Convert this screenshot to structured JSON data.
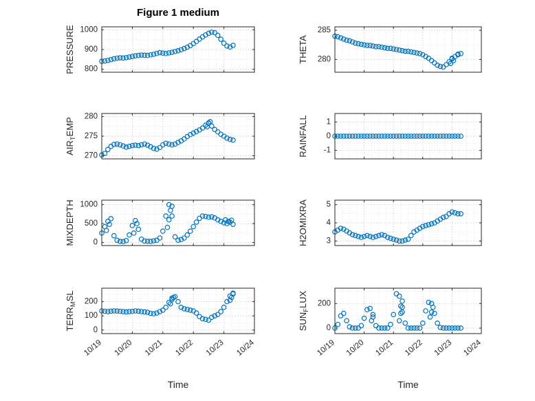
{
  "title": "Figure 1 medium",
  "colors": {
    "marker": "#0072BD",
    "axis": "#262626",
    "grid_major": "#bcbcbc",
    "grid_minor": "#e2e2e2",
    "text": "#262626"
  },
  "chart_data": {
    "type": "scatter",
    "xlabel": "Time",
    "marker": {
      "shape": "open-circle",
      "color": "#0072BD",
      "radius": 3.2
    },
    "xlim": [
      0,
      5
    ],
    "x_ticks": {
      "positions": [
        0,
        1,
        2,
        3,
        4,
        5
      ],
      "labels": [
        "10/19",
        "10/20",
        "10/21",
        "10/22",
        "10/23",
        "10/24"
      ]
    },
    "grid": {
      "major": true,
      "minor": true,
      "style": "dotted"
    },
    "x_base": [
      0,
      0.1,
      0.2,
      0.3,
      0.4,
      0.5,
      0.6,
      0.7,
      0.8,
      0.9,
      1,
      1.1,
      1.2,
      1.3,
      1.4,
      1.5,
      1.6,
      1.7,
      1.8,
      1.9,
      2,
      2.1,
      2.2,
      2.3,
      2.4,
      2.5,
      2.6,
      2.7,
      2.8,
      2.9,
      3,
      3.1,
      3.2,
      3.3,
      3.4,
      3.5,
      3.6,
      3.7,
      3.8,
      3.9,
      4,
      4.1,
      4.2,
      4.3
    ],
    "subplots": [
      {
        "name": "PRESSURE",
        "ylabel_parts": [
          {
            "t": "PRESSURE"
          }
        ],
        "ylim": [
          785,
          1015
        ],
        "yticks": [
          800,
          900,
          1000
        ],
        "y": [
          840,
          842,
          845,
          849,
          853,
          856,
          858,
          857,
          859,
          862,
          865,
          868,
          870,
          872,
          871,
          870,
          873,
          876,
          880,
          884,
          882,
          880,
          883,
          886,
          890,
          894,
          899,
          905,
          912,
          920,
          930,
          941,
          953,
          964,
          974,
          982,
          988,
          985,
          972,
          952,
          932,
          918,
          913,
          921
        ]
      },
      {
        "name": "THETA",
        "ylabel_parts": [
          {
            "t": "THETA"
          }
        ],
        "ylim": [
          277.8,
          285.6
        ],
        "yticks": [
          280,
          285
        ],
        "y": [
          284.0,
          283.9,
          283.7,
          283.5,
          283.3,
          283.2,
          283.0,
          282.8,
          282.7,
          282.6,
          282.5,
          282.4,
          282.4,
          282.3,
          282.2,
          282.2,
          282.1,
          282.0,
          281.9,
          281.9,
          281.8,
          281.7,
          281.6,
          281.5,
          281.4,
          281.4,
          281.3,
          281.2,
          281.1,
          281.0,
          280.8,
          280.5,
          280.2,
          279.8,
          279.4,
          279.0,
          278.8,
          278.7,
          279.1,
          279.6,
          280.1,
          280.5,
          280.8,
          281.0
        ],
        "x_extra": [
          3.95,
          4.0,
          4.05,
          4.2
        ],
        "y_extra": [
          279.3,
          280.2,
          279.8,
          280.9
        ]
      },
      {
        "name": "AIR_TEMP",
        "ylabel_parts": [
          {
            "t": "AIR"
          },
          {
            "t": "T",
            "sub": true
          },
          {
            "t": "EMP"
          }
        ],
        "ylim": [
          269.2,
          280.8
        ],
        "yticks": [
          270,
          275,
          280
        ],
        "y": [
          270.2,
          270.6,
          271.6,
          272.4,
          272.9,
          273.0,
          272.8,
          272.5,
          272.2,
          272.4,
          272.6,
          272.7,
          272.6,
          272.8,
          273.0,
          272.7,
          272.3,
          271.9,
          271.7,
          272.1,
          272.8,
          273.2,
          273.0,
          272.8,
          273.0,
          273.4,
          273.8,
          274.3,
          274.9,
          275.4,
          275.8,
          276.2,
          276.6,
          277.1,
          277.8,
          278.4,
          277.6,
          276.7,
          276.1,
          275.5,
          275.0,
          274.5,
          274.2,
          274.0
        ],
        "x_extra": [
          3.45,
          3.5,
          3.55
        ],
        "y_extra": [
          277.4,
          278.3,
          278.7
        ]
      },
      {
        "name": "RAINFALL",
        "ylabel_parts": [
          {
            "t": "RAINFALL"
          }
        ],
        "ylim": [
          -1.6,
          1.6
        ],
        "yticks": [
          -1,
          0,
          1
        ],
        "y": [
          0,
          0,
          0,
          0,
          0,
          0,
          0,
          0,
          0,
          0,
          0,
          0,
          0,
          0,
          0,
          0,
          0,
          0,
          0,
          0,
          0,
          0,
          0,
          0,
          0,
          0,
          0,
          0,
          0,
          0,
          0,
          0,
          0,
          0,
          0,
          0,
          0,
          0,
          0,
          0,
          0,
          0,
          0,
          0
        ]
      },
      {
        "name": "MIXDEPTH",
        "ylabel_parts": [
          {
            "t": "MIXDEPTH"
          }
        ],
        "ylim": [
          -80,
          1120
        ],
        "yticks": [
          0,
          500,
          1000
        ],
        "y": [
          250,
          420,
          560,
          630,
          180,
          60,
          30,
          25,
          50,
          200,
          450,
          580,
          350,
          90,
          40,
          35,
          30,
          45,
          60,
          120,
          300,
          700,
          1000,
          960,
          150,
          60,
          80,
          120,
          200,
          300,
          420,
          540,
          640,
          700,
          690,
          670,
          680,
          650,
          600,
          560,
          520,
          500,
          540,
          480
        ],
        "x_extra": [
          0.15,
          0.25,
          1.05,
          1.15,
          2.15,
          2.2,
          2.25,
          2.3,
          4.05,
          4.15,
          4.25
        ],
        "y_extra": [
          320,
          480,
          250,
          500,
          400,
          600,
          850,
          700,
          600,
          560,
          590
        ]
      },
      {
        "name": "H2OMIXRA",
        "ylabel_parts": [
          {
            "t": "H2OMIXRA"
          }
        ],
        "ylim": [
          2.75,
          5.25
        ],
        "yticks": [
          3,
          4,
          5
        ],
        "y": [
          3.5,
          3.6,
          3.7,
          3.65,
          3.55,
          3.45,
          3.35,
          3.3,
          3.25,
          3.2,
          3.25,
          3.3,
          3.25,
          3.2,
          3.25,
          3.3,
          3.35,
          3.3,
          3.2,
          3.15,
          3.1,
          3.05,
          3.0,
          3.0,
          3.05,
          3.1,
          3.3,
          3.5,
          3.6,
          3.7,
          3.8,
          3.85,
          3.9,
          3.95,
          4.0,
          4.1,
          4.2,
          4.3,
          4.35,
          4.5,
          4.6,
          4.55,
          4.5,
          4.5
        ]
      },
      {
        "name": "TERR_MSL",
        "ylabel_parts": [
          {
            "t": "TERR"
          },
          {
            "t": "M",
            "sub": true
          },
          {
            "t": "SL"
          }
        ],
        "ylim": [
          -25,
          295
        ],
        "yticks": [
          0,
          100,
          200
        ],
        "y": [
          135,
          132,
          130,
          133,
          135,
          134,
          132,
          130,
          128,
          130,
          132,
          135,
          133,
          130,
          128,
          125,
          118,
          115,
          120,
          130,
          140,
          160,
          195,
          225,
          235,
          200,
          160,
          150,
          145,
          140,
          135,
          120,
          95,
          80,
          75,
          70,
          90,
          100,
          110,
          130,
          160,
          200,
          240,
          260
        ],
        "x_extra": [
          2.25,
          2.3,
          2.35,
          4.2,
          4.25,
          4.3
        ],
        "y_extra": [
          185,
          215,
          230,
          210,
          230,
          255
        ]
      },
      {
        "name": "SUN_FLUX",
        "ylabel_parts": [
          {
            "t": "SUN"
          },
          {
            "t": "F",
            "sub": true
          },
          {
            "t": "LUX"
          }
        ],
        "ylim": [
          -45,
          325
        ],
        "yticks": [
          0,
          200
        ],
        "y": [
          0,
          30,
          100,
          120,
          60,
          10,
          0,
          0,
          0,
          20,
          80,
          150,
          160,
          90,
          20,
          0,
          0,
          0,
          0,
          30,
          110,
          280,
          260,
          130,
          40,
          0,
          0,
          0,
          0,
          0,
          40,
          140,
          210,
          200,
          120,
          40,
          5,
          0,
          0,
          0,
          0,
          0,
          0,
          0
        ],
        "x_extra": [
          1.25,
          1.3,
          2.2,
          2.25,
          2.25,
          2.3,
          2.3,
          3.25,
          3.3,
          3.35
        ],
        "y_extra": [
          60,
          110,
          60,
          120,
          180,
          220,
          170,
          90,
          130,
          170
        ]
      }
    ]
  }
}
